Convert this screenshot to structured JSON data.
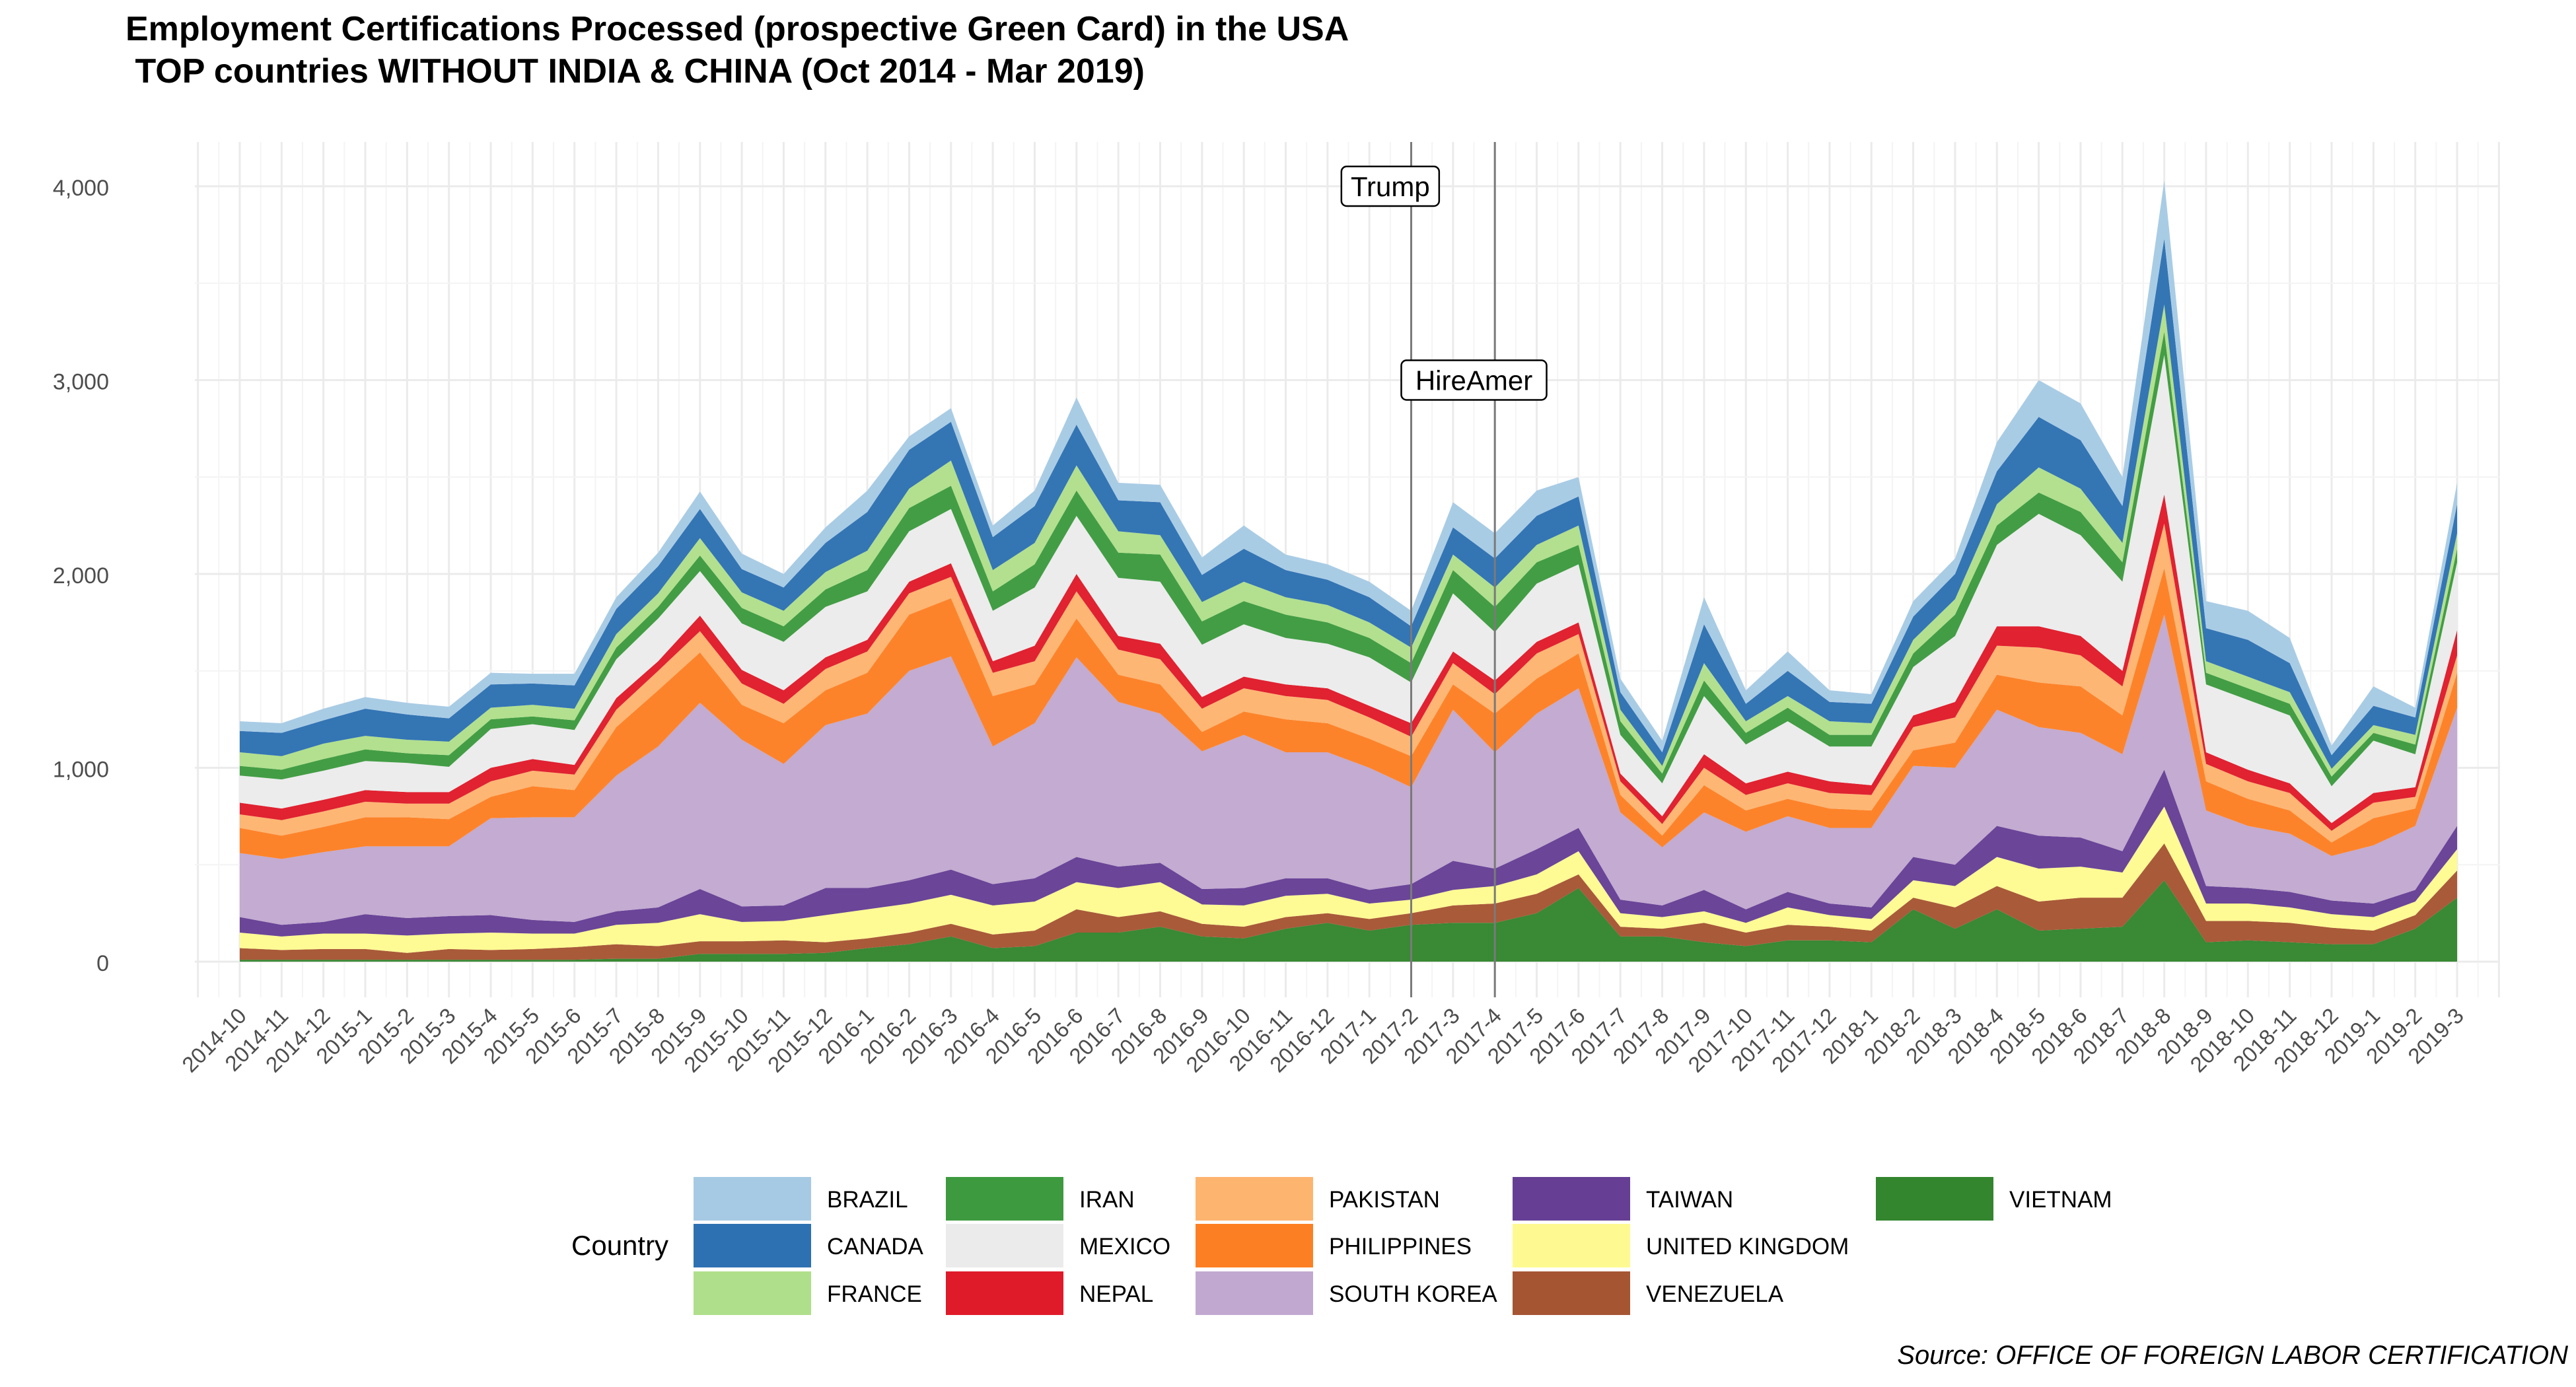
{
  "chart_data": {
    "type": "area",
    "stacked": true,
    "title": "Employment Certifications Processed (prospective Green Card) in the USA",
    "subtitle": " TOP countries WITHOUT INDIA & CHINA (Oct 2014 - Mar 2019)",
    "xlabel": "",
    "ylabel": "",
    "ylim": [
      0,
      4000
    ],
    "yticks": [
      0,
      1000,
      2000,
      3000,
      4000
    ],
    "ytick_labels": [
      "0",
      "1,000",
      "2,000",
      "3,000",
      "4,000"
    ],
    "grid": true,
    "legend_title": "Country",
    "legend_position": "bottom",
    "source": "Source: OFFICE OF FOREIGN LABOR CERTIFICATION",
    "annotations": [
      {
        "label": "Trump",
        "x": "2017-1",
        "y": 4000
      },
      {
        "label": "HireAmer",
        "x": "2017-3",
        "y": 3000
      }
    ],
    "vlines": [
      "2017-2",
      "2017-4"
    ],
    "categories": [
      "2014-10",
      "2014-11",
      "2014-12",
      "2015-1",
      "2015-2",
      "2015-3",
      "2015-4",
      "2015-5",
      "2015-6",
      "2015-7",
      "2015-8",
      "2015-9",
      "2015-10",
      "2015-11",
      "2015-12",
      "2016-1",
      "2016-2",
      "2016-3",
      "2016-4",
      "2016-5",
      "2016-6",
      "2016-7",
      "2016-8",
      "2016-9",
      "2016-10",
      "2016-11",
      "2016-12",
      "2017-1",
      "2017-2",
      "2017-3",
      "2017-4",
      "2017-5",
      "2017-6",
      "2017-7",
      "2017-8",
      "2017-9",
      "2017-10",
      "2017-11",
      "2017-12",
      "2018-1",
      "2018-2",
      "2018-3",
      "2018-4",
      "2018-5",
      "2018-6",
      "2018-7",
      "2018-8",
      "2018-9",
      "2018-10",
      "2018-11",
      "2018-12",
      "2019-1",
      "2019-2",
      "2019-3"
    ],
    "series": [
      {
        "name": "VIETNAM",
        "color": "#33852e",
        "values": [
          10,
          10,
          10,
          10,
          10,
          10,
          10,
          10,
          10,
          15,
          15,
          40,
          40,
          40,
          45,
          70,
          90,
          130,
          70,
          80,
          150,
          150,
          180,
          130,
          120,
          170,
          200,
          160,
          190,
          200,
          200,
          250,
          380,
          130,
          130,
          100,
          80,
          110,
          110,
          100,
          270,
          170,
          270,
          160,
          170,
          180,
          420,
          100,
          110,
          100,
          90,
          90,
          170,
          330
        ]
      },
      {
        "name": "VENEZUELA",
        "color": "#a65533",
        "values": [
          60,
          50,
          55,
          55,
          35,
          55,
          50,
          55,
          65,
          75,
          65,
          65,
          65,
          70,
          55,
          50,
          60,
          65,
          70,
          80,
          120,
          80,
          80,
          65,
          60,
          60,
          50,
          60,
          60,
          90,
          100,
          100,
          70,
          50,
          40,
          100,
          70,
          80,
          70,
          60,
          60,
          110,
          120,
          150,
          160,
          150,
          190,
          110,
          100,
          100,
          85,
          70,
          70,
          140
        ]
      },
      {
        "name": "UNITED KINGDOM",
        "color": "#fefa91",
        "values": [
          80,
          70,
          80,
          80,
          90,
          80,
          90,
          80,
          70,
          100,
          120,
          140,
          100,
          100,
          140,
          150,
          150,
          150,
          150,
          150,
          140,
          150,
          150,
          100,
          110,
          110,
          100,
          80,
          70,
          80,
          90,
          100,
          120,
          70,
          60,
          60,
          50,
          90,
          60,
          60,
          90,
          110,
          150,
          170,
          160,
          130,
          190,
          90,
          90,
          80,
          70,
          70,
          70,
          110
        ]
      },
      {
        "name": "TAIWAN",
        "color": "#663f95",
        "values": [
          80,
          60,
          60,
          100,
          90,
          90,
          90,
          70,
          60,
          70,
          80,
          130,
          80,
          80,
          140,
          110,
          120,
          130,
          110,
          120,
          130,
          110,
          100,
          80,
          90,
          90,
          80,
          70,
          80,
          150,
          90,
          130,
          120,
          70,
          60,
          110,
          70,
          80,
          60,
          60,
          120,
          110,
          160,
          170,
          150,
          110,
          190,
          90,
          80,
          80,
          70,
          70,
          60,
          120
        ]
      },
      {
        "name": "SOUTH KOREA",
        "color": "#c1a8d0",
        "values": [
          330,
          340,
          360,
          350,
          370,
          360,
          500,
          530,
          540,
          700,
          830,
          960,
          860,
          730,
          840,
          900,
          1080,
          1100,
          710,
          800,
          1030,
          850,
          770,
          710,
          790,
          650,
          650,
          630,
          500,
          780,
          600,
          700,
          720,
          450,
          300,
          400,
          400,
          390,
          390,
          410,
          470,
          500,
          600,
          560,
          540,
          500,
          800,
          390,
          320,
          300,
          230,
          300,
          330,
          610
        ]
      },
      {
        "name": "PHILIPPINES",
        "color": "#fd7f23",
        "values": [
          130,
          120,
          130,
          150,
          150,
          140,
          110,
          160,
          140,
          250,
          290,
          260,
          180,
          210,
          180,
          210,
          290,
          300,
          260,
          200,
          200,
          140,
          150,
          100,
          120,
          170,
          150,
          150,
          160,
          130,
          200,
          180,
          180,
          90,
          60,
          140,
          110,
          90,
          100,
          90,
          80,
          130,
          180,
          230,
          240,
          200,
          240,
          150,
          140,
          120,
          70,
          140,
          90,
          180
        ]
      },
      {
        "name": "PAKISTAN",
        "color": "#fdb46f",
        "values": [
          70,
          80,
          80,
          80,
          70,
          80,
          80,
          80,
          80,
          90,
          100,
          110,
          110,
          100,
          110,
          110,
          110,
          110,
          120,
          120,
          140,
          130,
          130,
          120,
          120,
          120,
          120,
          110,
          100,
          110,
          100,
          130,
          100,
          70,
          60,
          90,
          80,
          80,
          80,
          80,
          120,
          130,
          150,
          180,
          160,
          150,
          230,
          90,
          90,
          90,
          60,
          80,
          60,
          90
        ]
      },
      {
        "name": "NEPAL",
        "color": "#df1b2a",
        "values": [
          60,
          60,
          60,
          60,
          60,
          60,
          70,
          60,
          50,
          60,
          50,
          80,
          70,
          70,
          60,
          60,
          60,
          70,
          60,
          80,
          90,
          70,
          80,
          60,
          60,
          60,
          60,
          60,
          70,
          60,
          70,
          60,
          60,
          40,
          40,
          70,
          60,
          60,
          60,
          50,
          60,
          80,
          100,
          110,
          100,
          80,
          150,
          60,
          60,
          50,
          40,
          50,
          50,
          130
        ]
      },
      {
        "name": "MEXICO",
        "color": "#ebebeb",
        "values": [
          140,
          150,
          150,
          150,
          150,
          130,
          200,
          180,
          180,
          200,
          220,
          230,
          240,
          250,
          260,
          250,
          260,
          280,
          260,
          300,
          300,
          300,
          320,
          270,
          270,
          240,
          230,
          250,
          210,
          300,
          250,
          300,
          300,
          200,
          170,
          300,
          200,
          260,
          180,
          200,
          250,
          340,
          420,
          580,
          520,
          460,
          720,
          350,
          360,
          350,
          190,
          270,
          170,
          350
        ]
      },
      {
        "name": "IRAN",
        "color": "#3d9a3f",
        "values": [
          50,
          50,
          60,
          60,
          50,
          60,
          50,
          40,
          50,
          60,
          60,
          80,
          80,
          80,
          90,
          110,
          120,
          120,
          100,
          120,
          130,
          130,
          140,
          120,
          120,
          120,
          110,
          100,
          100,
          120,
          130,
          110,
          100,
          70,
          50,
          80,
          60,
          70,
          60,
          60,
          70,
          110,
          100,
          110,
          120,
          100,
          120,
          60,
          60,
          60,
          50,
          40,
          50,
          70
        ]
      },
      {
        "name": "FRANCE",
        "color": "#afdf8a",
        "values": [
          70,
          70,
          80,
          70,
          70,
          70,
          60,
          60,
          60,
          70,
          70,
          90,
          80,
          80,
          90,
          100,
          100,
          130,
          110,
          110,
          130,
          110,
          100,
          100,
          100,
          90,
          90,
          80,
          80,
          80,
          100,
          90,
          100,
          60,
          40,
          90,
          60,
          60,
          70,
          60,
          70,
          80,
          110,
          130,
          120,
          100,
          140,
          60,
          60,
          60,
          40,
          40,
          50,
          80
        ]
      },
      {
        "name": "CANADA",
        "color": "#2d71b2",
        "values": [
          110,
          120,
          120,
          140,
          130,
          120,
          120,
          110,
          120,
          130,
          140,
          150,
          120,
          120,
          150,
          200,
          200,
          200,
          170,
          190,
          210,
          160,
          170,
          140,
          170,
          140,
          130,
          130,
          110,
          140,
          150,
          150,
          150,
          90,
          70,
          200,
          90,
          130,
          100,
          100,
          120,
          130,
          170,
          260,
          250,
          190,
          340,
          170,
          190,
          150,
          70,
          100,
          90,
          150
        ]
      },
      {
        "name": "BRAZIL",
        "color": "#a6cae4",
        "values": [
          50,
          50,
          60,
          60,
          60,
          60,
          60,
          50,
          60,
          60,
          70,
          90,
          80,
          70,
          80,
          110,
          70,
          70,
          60,
          80,
          140,
          90,
          90,
          90,
          120,
          80,
          80,
          80,
          80,
          130,
          130,
          130,
          100,
          70,
          60,
          140,
          70,
          100,
          60,
          50,
          80,
          80,
          150,
          190,
          190,
          150,
          300,
          140,
          150,
          130,
          50,
          100,
          50,
          110
        ]
      }
    ]
  }
}
